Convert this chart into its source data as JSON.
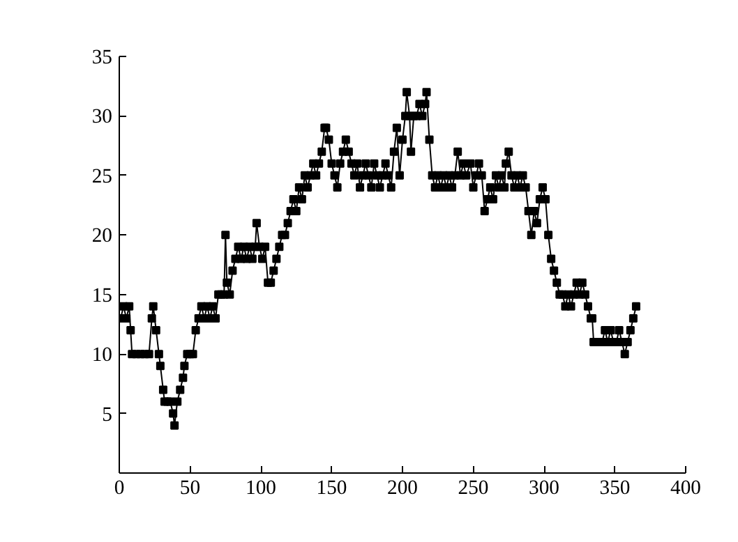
{
  "chart_data": {
    "type": "line",
    "marker": "square",
    "line_style": "solid",
    "grid": false,
    "x": [
      1,
      3,
      5,
      7,
      8,
      9,
      12,
      15,
      18,
      21,
      23,
      24,
      26,
      28,
      29,
      31,
      32,
      34,
      36,
      38,
      39,
      41,
      43,
      45,
      46,
      48,
      50,
      52,
      54,
      56,
      58,
      60,
      62,
      64,
      66,
      68,
      70,
      72,
      74,
      75,
      76,
      78,
      80,
      82,
      84,
      86,
      88,
      90,
      92,
      94,
      96,
      97,
      99,
      101,
      103,
      105,
      107,
      109,
      111,
      113,
      115,
      117,
      119,
      121,
      123,
      125,
      127,
      129,
      131,
      133,
      135,
      137,
      139,
      141,
      143,
      145,
      146,
      148,
      150,
      152,
      154,
      156,
      158,
      160,
      162,
      164,
      166,
      168,
      170,
      172,
      174,
      176,
      178,
      180,
      182,
      184,
      186,
      188,
      190,
      192,
      194,
      196,
      198,
      200,
      202,
      203,
      205,
      206,
      208,
      210,
      212,
      214,
      216,
      217,
      219,
      221,
      223,
      225,
      227,
      229,
      231,
      233,
      235,
      237,
      239,
      241,
      243,
      245,
      248,
      250,
      252,
      254,
      256,
      258,
      260,
      262,
      264,
      266,
      268,
      270,
      272,
      273,
      275,
      277,
      279,
      281,
      283,
      285,
      287,
      289,
      291,
      293,
      295,
      297,
      299,
      301,
      303,
      305,
      307,
      309,
      311,
      313,
      315,
      317,
      319,
      321,
      323,
      325,
      327,
      329,
      331,
      333,
      334,
      335,
      337,
      339,
      341,
      343,
      345,
      347,
      349,
      351,
      353,
      355,
      357,
      359,
      361,
      363,
      365
    ],
    "values": [
      13,
      14,
      13,
      14,
      12,
      10,
      10,
      10,
      10,
      10,
      13,
      14,
      12,
      10,
      9,
      7,
      6,
      6,
      6,
      5,
      4,
      6,
      7,
      8,
      9,
      10,
      10,
      10,
      12,
      13,
      14,
      13,
      14,
      13,
      14,
      13,
      15,
      15,
      15,
      20,
      16,
      15,
      17,
      18,
      19,
      18,
      19,
      18,
      19,
      18,
      19,
      21,
      19,
      18,
      19,
      16,
      16,
      17,
      18,
      19,
      20,
      20,
      21,
      22,
      23,
      22,
      24,
      23,
      25,
      24,
      25,
      26,
      25,
      26,
      27,
      29,
      29,
      28,
      26,
      25,
      24,
      26,
      27,
      28,
      27,
      26,
      25,
      26,
      24,
      25,
      26,
      25,
      24,
      26,
      25,
      24,
      25,
      26,
      25,
      24,
      27,
      29,
      25,
      28,
      30,
      32,
      30,
      27,
      30,
      30,
      31,
      30,
      31,
      32,
      28,
      25,
      24,
      25,
      24,
      25,
      24,
      25,
      24,
      25,
      27,
      25,
      26,
      25,
      26,
      24,
      25,
      26,
      25,
      22,
      23,
      24,
      23,
      25,
      24,
      25,
      24,
      26,
      27,
      25,
      24,
      25,
      24,
      25,
      24,
      22,
      20,
      22,
      21,
      23,
      24,
      23,
      20,
      18,
      17,
      16,
      15,
      15,
      14,
      15,
      14,
      15,
      16,
      15,
      16,
      15,
      14,
      13,
      13,
      11,
      11,
      11,
      11,
      12,
      11,
      12,
      11,
      11,
      12,
      11,
      10,
      11,
      12,
      13,
      14
    ],
    "color": "#000000",
    "xlim": [
      0,
      400
    ],
    "xticks": [
      0,
      50,
      100,
      150,
      200,
      250,
      300,
      350,
      400
    ],
    "ylim": [
      0,
      35
    ],
    "yticks": [
      {
        "value": 0,
        "label": null
      },
      5,
      10,
      15,
      20,
      25,
      30,
      35
    ]
  }
}
